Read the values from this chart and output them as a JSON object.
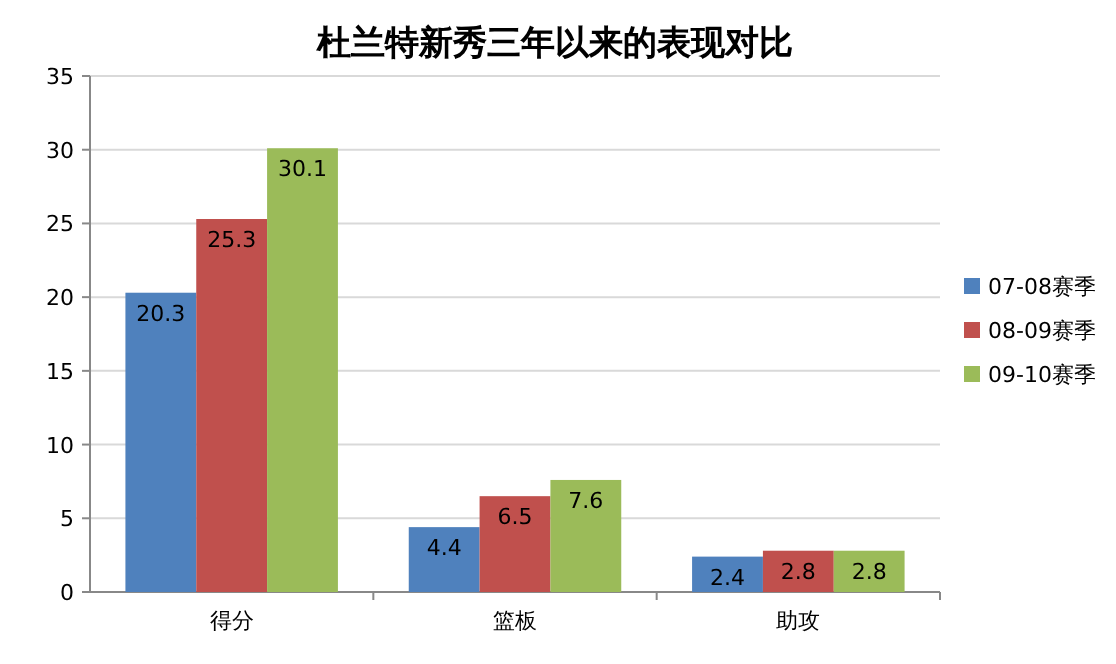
{
  "chart_data": {
    "type": "bar",
    "title": "杜兰特新秀三年以来的表现对比",
    "categories": [
      "得分",
      "篮板",
      "助攻"
    ],
    "series": [
      {
        "name": "07-08赛季",
        "color": "#4f81bd",
        "values": [
          20.3,
          4.4,
          2.4
        ]
      },
      {
        "name": "08-09赛季",
        "color": "#c0504d",
        "values": [
          25.3,
          6.5,
          2.8
        ]
      },
      {
        "name": "09-10赛季",
        "color": "#9bbb59",
        "values": [
          30.1,
          7.6,
          2.8
        ]
      }
    ],
    "ylim": [
      0,
      35
    ],
    "yticks": [
      0,
      5,
      10,
      15,
      20,
      25,
      30,
      35
    ],
    "grid": "y",
    "legend": "right",
    "data_labels": true
  }
}
